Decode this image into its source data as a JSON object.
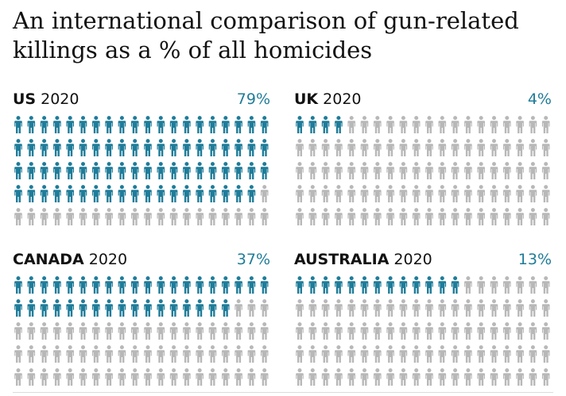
{
  "title": "An international comparison of gun-related killings as a % of all homicides",
  "colors": {
    "highlight": "#1f7c99",
    "base": "#b8b8b8",
    "text": "#121212"
  },
  "icon": "person-icon",
  "panels": [
    {
      "country": "US",
      "year": "2020",
      "percent_label": "79%",
      "percent": 79
    },
    {
      "country": "UK",
      "year": "2020",
      "percent_label": "4%",
      "percent": 4
    },
    {
      "country": "CANADA",
      "year": "2020",
      "percent_label": "37%",
      "percent": 37
    },
    {
      "country": "AUSTRALIA",
      "year": "2020",
      "percent_label": "13%",
      "percent": 13
    }
  ],
  "chart_data": {
    "type": "bar",
    "title": "An international comparison of gun-related killings as a % of all homicides",
    "categories": [
      "US",
      "UK",
      "CANADA",
      "AUSTRALIA"
    ],
    "values": [
      79,
      4,
      37,
      13
    ],
    "ylim": [
      0,
      100
    ],
    "grid": false
  }
}
